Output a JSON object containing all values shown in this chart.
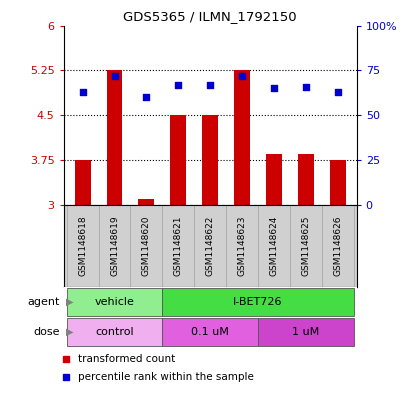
{
  "title": "GDS5365 / ILMN_1792150",
  "samples": [
    "GSM1148618",
    "GSM1148619",
    "GSM1148620",
    "GSM1148621",
    "GSM1148622",
    "GSM1148623",
    "GSM1148624",
    "GSM1148625",
    "GSM1148626"
  ],
  "transformed_counts": [
    3.75,
    5.25,
    3.1,
    4.5,
    4.5,
    5.25,
    3.85,
    3.85,
    3.75
  ],
  "percentile_ranks": [
    63,
    72,
    60,
    67,
    67,
    72,
    65,
    66,
    63
  ],
  "ylim_left": [
    3.0,
    6.0
  ],
  "ylim_right": [
    0,
    100
  ],
  "yticks_left": [
    3.0,
    3.75,
    4.5,
    5.25,
    6.0
  ],
  "ytick_labels_left": [
    "3",
    "3.75",
    "4.5",
    "5.25",
    "6"
  ],
  "yticks_right": [
    0,
    25,
    50,
    75,
    100
  ],
  "ytick_labels_right": [
    "0",
    "25",
    "50",
    "75",
    "100%"
  ],
  "hlines": [
    3.75,
    4.5,
    5.25
  ],
  "bar_color": "#cc0000",
  "scatter_color": "#0000cc",
  "bar_width": 0.5,
  "agent_groups": [
    {
      "label": "vehicle",
      "start": 0,
      "end": 3,
      "color": "#90ee90"
    },
    {
      "label": "I-BET726",
      "start": 3,
      "end": 9,
      "color": "#44dd44"
    }
  ],
  "dose_groups": [
    {
      "label": "control",
      "start": 0,
      "end": 3,
      "color": "#f0b0f0"
    },
    {
      "label": "0.1 uM",
      "start": 3,
      "end": 6,
      "color": "#e060e0"
    },
    {
      "label": "1 uM",
      "start": 6,
      "end": 9,
      "color": "#cc44cc"
    }
  ],
  "legend_red": "transformed count",
  "legend_blue": "percentile rank within the sample",
  "left_label_color": "#cc0000",
  "right_label_color": "#0000cc",
  "sample_box_color": "#d0d0d0",
  "sample_box_edge": "#aaaaaa"
}
